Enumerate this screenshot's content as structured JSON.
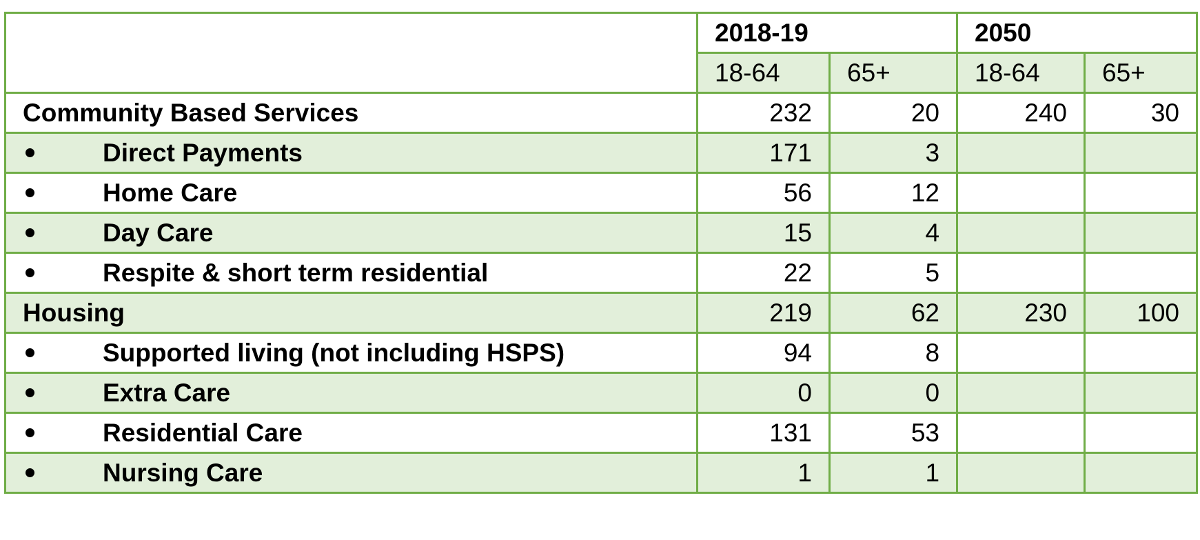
{
  "table": {
    "header": {
      "groups": [
        "2018-19",
        "2050"
      ],
      "subheaders": [
        "18-64",
        "65+",
        "18-64",
        "65+"
      ]
    },
    "rows": [
      {
        "label": "Community Based Services",
        "bullet": false,
        "values": [
          "232",
          "20",
          "240",
          "30"
        ]
      },
      {
        "label": "Direct Payments",
        "bullet": true,
        "values": [
          "171",
          "3",
          null,
          null
        ]
      },
      {
        "label": "Home Care",
        "bullet": true,
        "values": [
          "56",
          "12",
          null,
          null
        ]
      },
      {
        "label": "Day Care",
        "bullet": true,
        "values": [
          "15",
          "4",
          null,
          null
        ]
      },
      {
        "label": "Respite & short term residential",
        "bullet": true,
        "values": [
          "22",
          "5",
          null,
          null
        ]
      },
      {
        "label": "Housing",
        "bullet": false,
        "values": [
          "219",
          "62",
          "230",
          "100"
        ]
      },
      {
        "label": "Supported living (not including HSPS)",
        "bullet": true,
        "values": [
          "94",
          "8",
          null,
          null
        ]
      },
      {
        "label": "Extra Care",
        "bullet": true,
        "values": [
          "0",
          "0",
          null,
          null
        ]
      },
      {
        "label": "Residential Care",
        "bullet": true,
        "values": [
          "131",
          "53",
          null,
          null
        ]
      },
      {
        "label": "Nursing Care",
        "bullet": true,
        "values": [
          "1",
          "1",
          null,
          null
        ]
      }
    ]
  }
}
